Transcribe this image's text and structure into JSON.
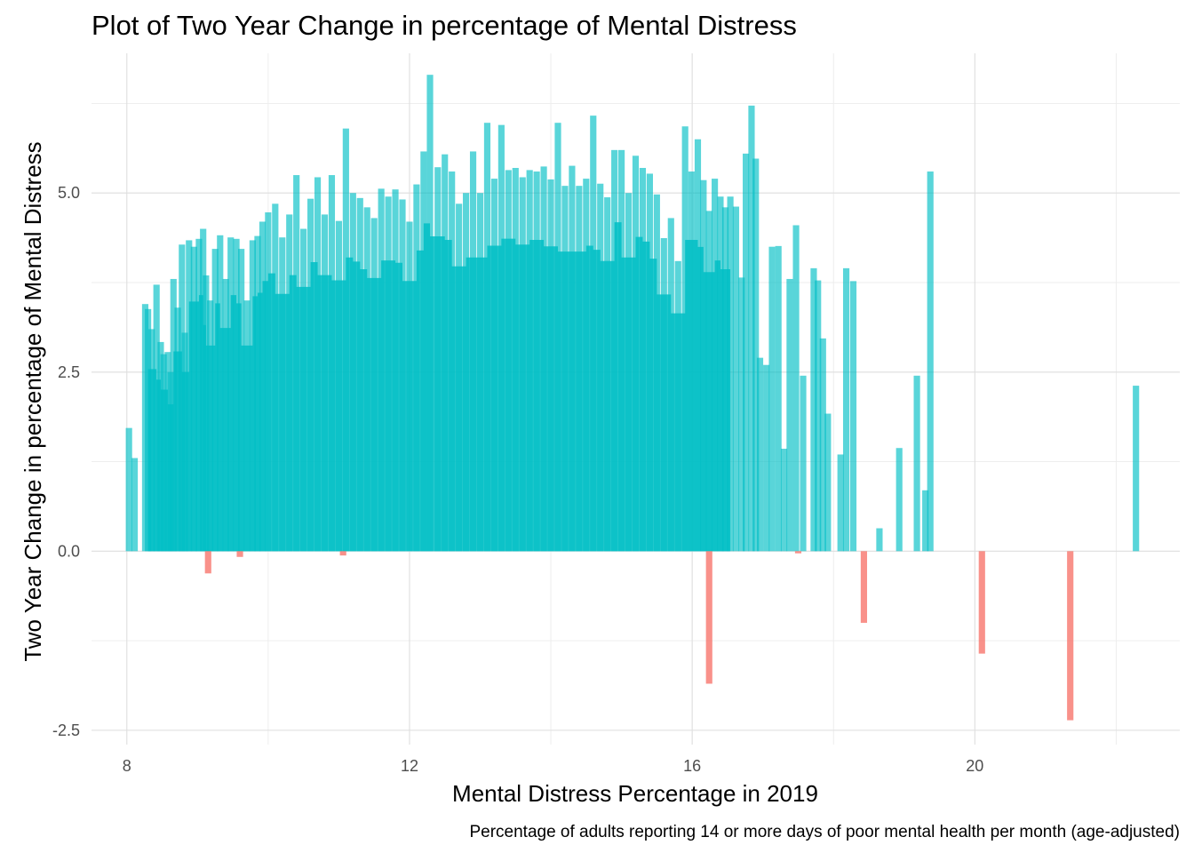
{
  "chart_data": {
    "type": "bar",
    "title": "Plot of Two Year Change in percentage of Mental Distress",
    "xlabel": "Mental Distress Percentage in 2019",
    "ylabel": "Two Year Change in percentage of Mental Distress",
    "caption": "Percentage of adults reporting 14 or more days of poor mental health per month (age-adjusted)",
    "xlim": [
      7.5,
      22.9
    ],
    "ylim": [
      -2.7,
      6.95
    ],
    "x_ticks": [
      8,
      12,
      16,
      20
    ],
    "x_tick_labels": [
      "8",
      "12",
      "16",
      "20"
    ],
    "x_minor_ticks": [
      10,
      14,
      18,
      22
    ],
    "y_ticks": [
      -2.5,
      0,
      2.5,
      5
    ],
    "y_tick_labels": [
      "-2.5",
      "0.0",
      "2.5",
      "5.0"
    ],
    "y_minor_ticks": [
      -1.25,
      1.25,
      3.75,
      6.25
    ],
    "grid": true,
    "legend": "none",
    "bar_width": 0.09,
    "colors": {
      "positive": "#00BFC4",
      "negative": "#F8766D",
      "grid": "#dedede",
      "background": "#ffffff"
    },
    "series": [
      {
        "name": "positive",
        "color": "#00BFC4",
        "x": [
          8.03,
          8.11,
          8.26,
          8.3,
          8.35,
          8.42,
          8.48,
          8.52,
          8.58,
          8.62,
          8.66,
          8.72,
          8.78,
          8.82,
          8.88,
          8.95,
          9.02,
          9.08,
          9.12,
          9.18,
          9.25,
          9.32,
          9.4,
          9.47,
          9.55,
          9.62,
          9.7,
          9.78,
          9.85,
          9.92,
          10.0,
          10.1,
          10.2,
          10.3,
          10.4,
          10.5,
          10.6,
          10.7,
          10.8,
          10.9,
          11.0,
          11.1,
          11.2,
          11.3,
          11.4,
          11.5,
          11.6,
          11.7,
          11.8,
          11.9,
          12.0,
          12.1,
          12.2,
          12.29,
          12.4,
          12.5,
          12.6,
          12.7,
          12.8,
          12.9,
          13.0,
          13.1,
          13.2,
          13.3,
          13.4,
          13.5,
          13.6,
          13.7,
          13.8,
          13.9,
          14.0,
          14.1,
          14.2,
          14.3,
          14.4,
          14.5,
          14.6,
          14.7,
          14.8,
          14.9,
          15.0,
          15.1,
          15.2,
          15.3,
          15.4,
          15.5,
          15.6,
          15.7,
          15.8,
          15.9,
          15.99,
          16.08,
          16.16,
          16.24,
          16.32,
          16.4,
          16.47,
          16.54,
          16.62,
          16.7,
          16.76,
          16.84,
          16.9,
          16.96,
          17.05,
          17.13,
          17.22,
          17.3,
          17.38,
          17.47,
          17.57,
          17.72,
          17.78,
          17.85,
          17.92,
          18.1,
          18.18,
          18.28,
          18.65,
          18.93,
          19.18,
          19.3,
          19.37,
          22.28
        ],
        "y": [
          1.72,
          1.3,
          3.45,
          3.38,
          3.1,
          3.72,
          2.92,
          2.75,
          2.78,
          2.5,
          3.8,
          3.4,
          4.28,
          3.05,
          4.34,
          4.25,
          4.36,
          4.5,
          3.85,
          3.5,
          4.22,
          4.41,
          3.8,
          4.38,
          4.36,
          4.22,
          3.5,
          4.34,
          4.4,
          4.6,
          4.73,
          4.85,
          4.38,
          4.7,
          5.25,
          4.5,
          4.92,
          5.22,
          4.7,
          5.25,
          4.61,
          5.9,
          5.0,
          4.93,
          4.8,
          4.65,
          5.06,
          4.95,
          5.05,
          4.91,
          4.6,
          5.12,
          5.58,
          6.65,
          5.36,
          5.54,
          5.3,
          4.85,
          5.0,
          5.58,
          5.0,
          5.98,
          5.2,
          5.95,
          5.32,
          5.35,
          5.22,
          5.32,
          5.3,
          5.37,
          5.19,
          5.98,
          5.1,
          5.38,
          5.1,
          5.2,
          6.08,
          5.13,
          4.94,
          5.6,
          5.6,
          5.0,
          5.52,
          5.35,
          5.27,
          4.98,
          4.37,
          4.65,
          4.05,
          5.93,
          5.3,
          5.75,
          5.18,
          4.75,
          5.2,
          4.95,
          4.8,
          4.95,
          4.81,
          3.82,
          5.55,
          6.22,
          5.48,
          2.7,
          2.6,
          4.25,
          4.26,
          1.43,
          3.8,
          4.55,
          2.45,
          3.95,
          3.78,
          2.97,
          1.92,
          1.35,
          3.95,
          3.77,
          0.32,
          1.44,
          2.45,
          0.85,
          5.3,
          2.31
        ]
      },
      {
        "name": "negative",
        "color": "#F8766D",
        "x": [
          9.15,
          9.6,
          11.06,
          16.24,
          17.5,
          18.43,
          20.1,
          21.35
        ],
        "y": [
          -0.31,
          -0.08,
          -0.06,
          -1.85,
          -0.03,
          -1.0,
          -1.43,
          -2.36
        ]
      }
    ]
  }
}
